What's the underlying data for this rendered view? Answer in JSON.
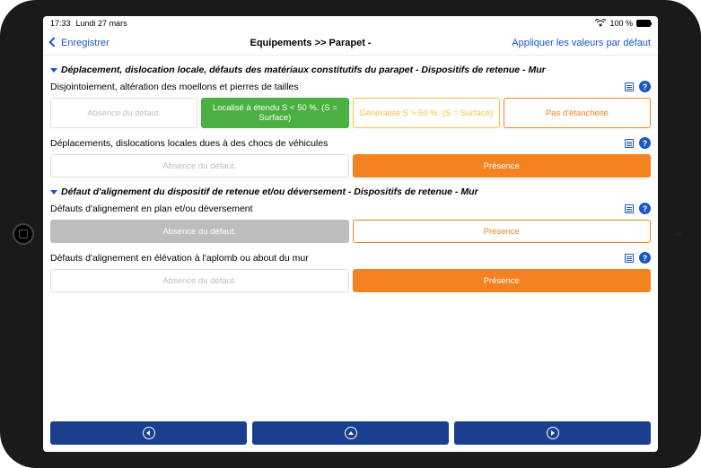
{
  "status": {
    "time": "17:33",
    "date": "Lundi 27 mars",
    "battery_pct": "100 %",
    "wifi_icon": "wifi"
  },
  "nav": {
    "back_label": "Enregistrer",
    "title": "Equipements >> Parapet -",
    "right_label": "Appliquer les valeurs par défaut"
  },
  "colors": {
    "accent_blue": "#1a56c4",
    "footer_blue": "#1a3f8f",
    "green_fill": "#4caf41",
    "orange_border": "#f58220",
    "orange_fill": "#f58220",
    "yellow_border": "#f7c13d",
    "grey_fill": "#bdbdbd",
    "grey_text": "#bdbdbd",
    "white": "#ffffff",
    "light_border": "#e0e0e0"
  },
  "sections": [
    {
      "title": "Déplacement, dislocation locale, défauts des matériaux constitutifs du parapet - Dispositifs de retenue - Mur",
      "questions": [
        {
          "text": "Disjointoiement, altération des moellons et pierres de tailles",
          "options": [
            {
              "label": "Absence du défaut.",
              "style": "outline-light-grey"
            },
            {
              "label": "Localisé à étendu S < 50 %. (S = Surface)",
              "style": "solid-green"
            },
            {
              "label": "Généralisé S > 50 %. (S = Surface)",
              "style": "outline-yellow"
            },
            {
              "label": "Pas d'étanchéité",
              "style": "outline-orange"
            }
          ]
        },
        {
          "text": "Déplacements, dislocations locales dues à des chocs de véhicules",
          "options": [
            {
              "label": "Absence du défaut.",
              "style": "outline-light-grey",
              "flex": 1
            },
            {
              "label": "Présence",
              "style": "solid-orange",
              "flex": 1
            }
          ]
        }
      ]
    },
    {
      "title": "Défaut d'alignement du dispositif de retenue et/ou déversement - Dispositifs de retenue - Mur",
      "questions": [
        {
          "text": "Défauts d'alignement en plan et/ou déversement",
          "options": [
            {
              "label": "Absence du défaut.",
              "style": "solid-grey",
              "flex": 1
            },
            {
              "label": "Présence",
              "style": "outline-orange",
              "flex": 1
            }
          ]
        },
        {
          "text": "Défauts d'alignement en élévation à l'aplomb ou about du mur",
          "options": [
            {
              "label": "Absence du défaut.",
              "style": "outline-light-grey",
              "flex": 1
            },
            {
              "label": "Présence",
              "style": "solid-orange",
              "flex": 1
            }
          ]
        }
      ]
    }
  ]
}
